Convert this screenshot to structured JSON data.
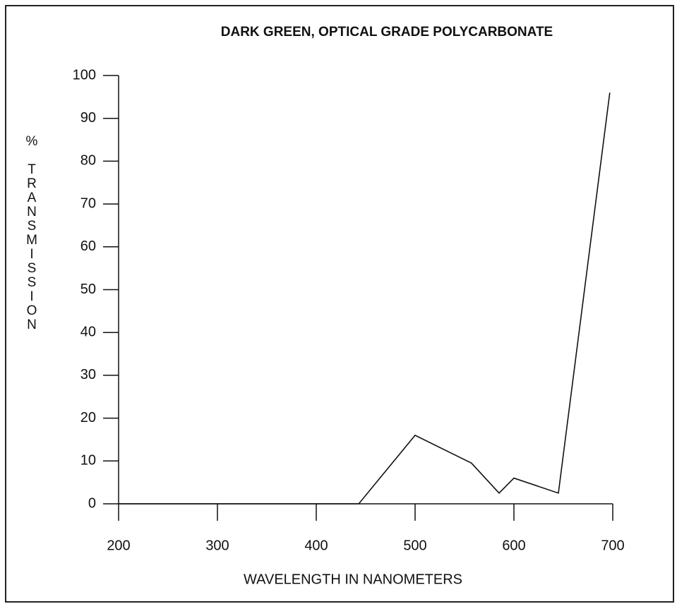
{
  "chart_data": {
    "type": "line",
    "title": "DARK GREEN, OPTICAL GRADE POLYCARBONATE",
    "x_label": "WAVELENGTH IN NANOMETERS",
    "y_label": "% TRANSMISSION",
    "x": [
      200,
      443,
      500,
      557,
      585,
      600,
      645,
      697
    ],
    "series": [
      {
        "color": "#111111",
        "values": [
          0,
          0,
          16,
          9.5,
          2.5,
          6,
          2.5,
          96
        ]
      }
    ],
    "xlim": [
      200,
      700
    ],
    "xticks": [
      200,
      300,
      400,
      500,
      600,
      700
    ],
    "ylim": [
      0,
      100
    ],
    "yticks": [
      0,
      10,
      20,
      30,
      40,
      50,
      60,
      70,
      80,
      90,
      100
    ],
    "grid": false
  }
}
